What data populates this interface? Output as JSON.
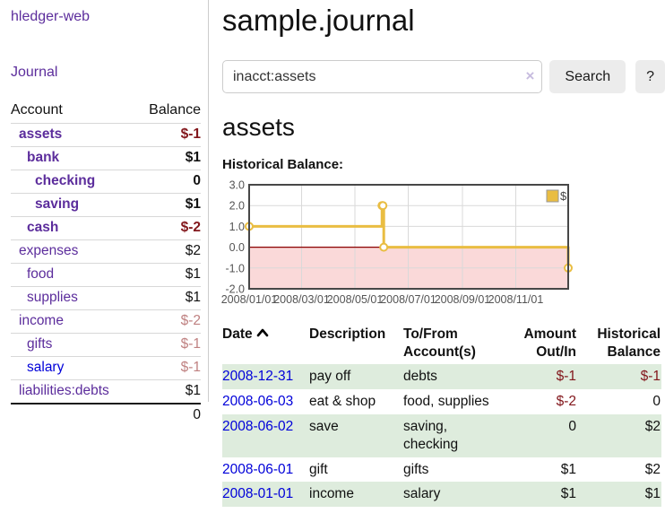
{
  "app": {
    "brand": "hledger-web"
  },
  "sidebar": {
    "nav_journal": "Journal",
    "accounts_table": {
      "headers": [
        "Account",
        "Balance"
      ],
      "rows": [
        {
          "account": "assets",
          "indent": 1,
          "bold": true,
          "balance": "$-1",
          "neg": "strong",
          "link": "purple"
        },
        {
          "account": "bank",
          "indent": 2,
          "bold": true,
          "balance": "$1",
          "neg": "none",
          "link": "purple"
        },
        {
          "account": "checking",
          "indent": 3,
          "bold": true,
          "balance": "0",
          "neg": "none",
          "link": "purple"
        },
        {
          "account": "saving",
          "indent": 3,
          "bold": true,
          "balance": "$1",
          "neg": "none",
          "link": "purple"
        },
        {
          "account": "cash",
          "indent": 2,
          "bold": true,
          "balance": "$-2",
          "neg": "strong",
          "link": "purple"
        },
        {
          "account": "expenses",
          "indent": 1,
          "bold": false,
          "balance": "$2",
          "neg": "none",
          "link": "purple"
        },
        {
          "account": "food",
          "indent": 2,
          "bold": false,
          "balance": "$1",
          "neg": "none",
          "link": "purple"
        },
        {
          "account": "supplies",
          "indent": 2,
          "bold": false,
          "balance": "$1",
          "neg": "none",
          "link": "purple"
        },
        {
          "account": "income",
          "indent": 1,
          "bold": false,
          "balance": "$-2",
          "neg": "soft",
          "link": "purple"
        },
        {
          "account": "gifts",
          "indent": 2,
          "bold": false,
          "balance": "$-1",
          "neg": "soft",
          "link": "purple"
        },
        {
          "account": "salary",
          "indent": 2,
          "bold": false,
          "balance": "$-1",
          "neg": "soft",
          "link": "blue"
        },
        {
          "account": "liabilities:debts",
          "indent": 1,
          "bold": false,
          "balance": "$1",
          "neg": "none",
          "link": "purple"
        }
      ],
      "total": "0"
    }
  },
  "header": {
    "title": "sample.journal"
  },
  "search": {
    "value": "inacct:assets",
    "clear_icon": "×",
    "button_label": "Search",
    "help_label": "?"
  },
  "account_page": {
    "heading": "assets",
    "chart_title": "Historical Balance:"
  },
  "chart_data": {
    "type": "line",
    "title": "Historical Balance:",
    "step": true,
    "x_range": [
      "2008-01-01",
      "2008-12-31"
    ],
    "ylim": [
      -2,
      3
    ],
    "y_ticks": [
      3.0,
      2.0,
      1.0,
      0.0,
      -1.0,
      -2.0
    ],
    "x_ticks": [
      "2008/01/01",
      "2008/03/01",
      "2008/05/01",
      "2008/07/01",
      "2008/09/01",
      "2008/11/01"
    ],
    "series": [
      {
        "name": "$",
        "color": "#e9bd42",
        "points": [
          [
            "2008-01-01",
            1
          ],
          [
            "2008-06-01",
            2
          ],
          [
            "2008-06-02",
            2
          ],
          [
            "2008-06-03",
            0
          ],
          [
            "2008-12-31",
            -1
          ]
        ]
      }
    ],
    "legend_position": "top-right",
    "grid": true,
    "negative_fill": "#fad9d9",
    "zero_line_color": "#8b0000",
    "border_color": "#474747",
    "grid_color": "#d9d9d9",
    "axis_label_color": "#545454"
  },
  "register": {
    "headers": {
      "date": "Date",
      "description": "Description",
      "accounts": "To/From Account(s)",
      "amount": "Amount Out/In",
      "balance": "Historical Balance"
    },
    "sort_icon": "chevron-up",
    "rows": [
      {
        "date": "2008-12-31",
        "description": "pay off",
        "accounts": "debts",
        "amount": "$-1",
        "amount_neg": true,
        "balance": "$-1",
        "balance_neg": true
      },
      {
        "date": "2008-06-03",
        "description": "eat & shop",
        "accounts": "food, supplies",
        "amount": "$-2",
        "amount_neg": true,
        "balance": "0",
        "balance_neg": false
      },
      {
        "date": "2008-06-02",
        "description": "save",
        "accounts": "saving, checking",
        "amount": "0",
        "amount_neg": false,
        "balance": "$2",
        "balance_neg": false
      },
      {
        "date": "2008-06-01",
        "description": "gift",
        "accounts": "gifts",
        "amount": "$1",
        "amount_neg": false,
        "balance": "$2",
        "balance_neg": false
      },
      {
        "date": "2008-01-01",
        "description": "income",
        "accounts": "salary",
        "amount": "$1",
        "amount_neg": false,
        "balance": "$1",
        "balance_neg": false
      }
    ]
  },
  "colors": {
    "purple_link": "#5c2d9c",
    "blue_link": "#0000d9",
    "negative_strong": "#82161b",
    "negative_soft": "#bf8181",
    "row_stripe_green": "#deecdd",
    "button_bg": "#ececec",
    "input_border": "#cccccc",
    "clear_icon": "#c7bcdf"
  }
}
